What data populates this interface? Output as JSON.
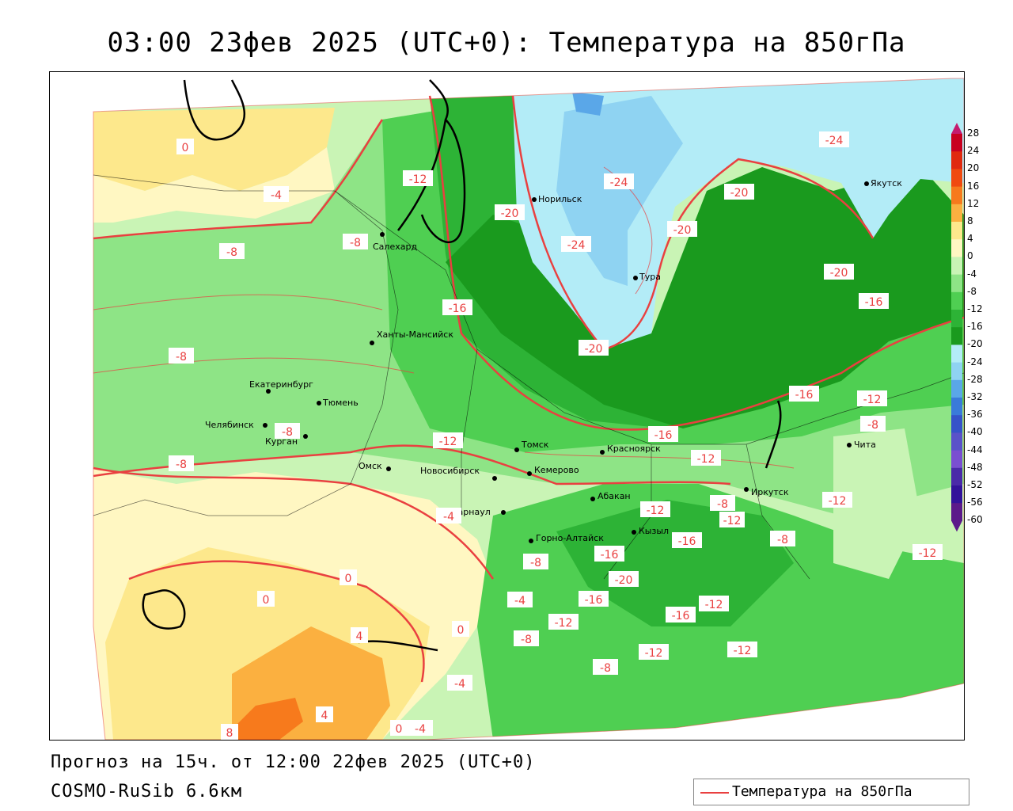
{
  "title": "03:00 23фев 2025 (UTC+0): Температура на 850гПа",
  "forecast_line": "Прогноз на 15ч. от 12:00 22фев 2025 (UTC+0)",
  "model_line": "COSMO-RuSib 6.6км",
  "legend": {
    "label": "Температура на 850гПа",
    "line_color": "#e94040"
  },
  "colorbar": {
    "labels": [
      "28",
      "24",
      "20",
      "16",
      "12",
      "8",
      "4",
      "0",
      "-4",
      "-8",
      "-12",
      "-16",
      "-20",
      "-24",
      "-28",
      "-32",
      "-36",
      "-40",
      "-44",
      "-48",
      "-52",
      "-56",
      "-60"
    ],
    "colors": [
      "#c41b6e",
      "#c80020",
      "#e02a10",
      "#f04a10",
      "#f77a1c",
      "#fbb040",
      "#fde88c",
      "#fff7c2",
      "#c9f4b5",
      "#8ee486",
      "#4fcf52",
      "#2db336",
      "#1a9a1e",
      "#b3ecf7",
      "#8fd3f2",
      "#5aa7e8",
      "#3a7bd9",
      "#3653c9",
      "#5a52c9",
      "#7a4fd1",
      "#4a2aa8",
      "#33139a",
      "#5c1a8a"
    ]
  },
  "cities": [
    {
      "name": "Норильск"
    },
    {
      "name": "Якутск"
    },
    {
      "name": "Салехард"
    },
    {
      "name": "Тура"
    },
    {
      "name": "Ханты-Мансийск"
    },
    {
      "name": "Екатеринбург"
    },
    {
      "name": "Тюмень"
    },
    {
      "name": "Челябинск"
    },
    {
      "name": "Курган"
    },
    {
      "name": "Омск"
    },
    {
      "name": "Новосибирск"
    },
    {
      "name": "Томск"
    },
    {
      "name": "Кемерово"
    },
    {
      "name": "Красноярск"
    },
    {
      "name": "Барнаул"
    },
    {
      "name": "Абакан"
    },
    {
      "name": "Горно-Алтайск"
    },
    {
      "name": "Кызыл"
    },
    {
      "name": "Иркутск"
    },
    {
      "name": "Чита"
    }
  ],
  "isotherm_labels": [
    "-4",
    "-8",
    "-8",
    "-8",
    "-8",
    "-12",
    "-20",
    "-24",
    "-24",
    "-20",
    "-20",
    "-24",
    "-20",
    "-16",
    "-16",
    "-20",
    "-16",
    "-12",
    "-8",
    "-12",
    "-16",
    "-12",
    "-12",
    "-12",
    "-8",
    "-12",
    "-8",
    "-12",
    "-16",
    "-16",
    "-20",
    "-8",
    "-4",
    "-16",
    "-12",
    "-16",
    "-12",
    "-12",
    "-8",
    "-12",
    "-8",
    "0",
    "0",
    "4",
    "0",
    "4",
    "-4",
    "8",
    "0",
    "-4",
    "-8",
    "0",
    "-4"
  ]
}
